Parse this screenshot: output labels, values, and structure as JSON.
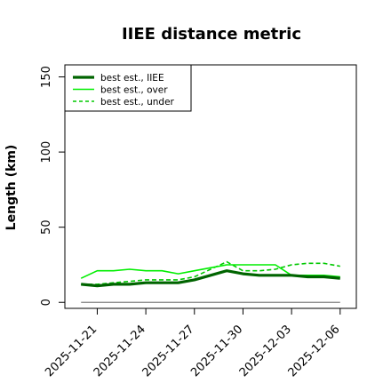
{
  "chart_data": {
    "type": "line",
    "title": "IIEE distance metric",
    "xlabel": "",
    "ylabel": "Length (km)",
    "xlim": [
      "2025-11-19",
      "2025-12-07"
    ],
    "ylim": [
      -4,
      158
    ],
    "x_ticks": [
      "2025-11-21",
      "2025-11-24",
      "2025-11-27",
      "2025-11-30",
      "2025-12-03",
      "2025-12-06"
    ],
    "y_ticks": [
      0,
      50,
      100,
      150
    ],
    "grid": false,
    "legend": {
      "position": "top-left",
      "boxed": true
    },
    "reference_line": {
      "y": 0,
      "color": "#808080"
    },
    "x": [
      "2025-11-20",
      "2025-11-21",
      "2025-11-22",
      "2025-11-23",
      "2025-11-24",
      "2025-11-25",
      "2025-11-26",
      "2025-11-27",
      "2025-11-28",
      "2025-11-29",
      "2025-11-30",
      "2025-12-01",
      "2025-12-02",
      "2025-12-03",
      "2025-12-04",
      "2025-12-05",
      "2025-12-06"
    ],
    "series": [
      {
        "name": "best est., IIEE",
        "color": "#006400",
        "style": "solid-thick",
        "values": [
          12,
          11,
          12,
          12,
          13,
          13,
          13,
          15,
          18,
          21,
          19,
          18,
          18,
          18,
          17,
          17,
          16
        ]
      },
      {
        "name": "best est., over",
        "color": "#00ee00",
        "style": "solid",
        "values": [
          16,
          21,
          21,
          22,
          21,
          21,
          19,
          21,
          23,
          25,
          25,
          25,
          25,
          18,
          18,
          18,
          17
        ]
      },
      {
        "name": "best est., under",
        "color": "#00c800",
        "style": "dashed",
        "values": [
          12,
          12,
          13,
          14,
          15,
          15,
          15,
          17,
          22,
          27,
          21,
          21,
          22,
          25,
          26,
          26,
          24
        ]
      }
    ]
  }
}
